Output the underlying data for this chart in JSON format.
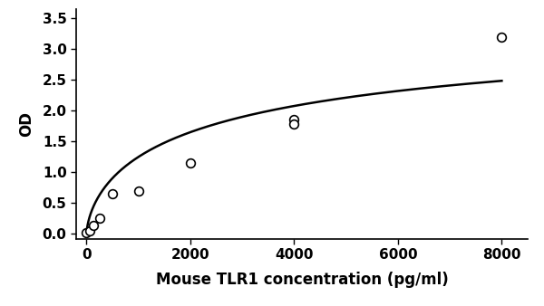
{
  "data_points_x": [
    0,
    62.5,
    125,
    250,
    500,
    1000,
    2000,
    4000,
    4000,
    8000
  ],
  "data_points_y": [
    0.02,
    0.05,
    0.13,
    0.25,
    0.65,
    0.7,
    1.15,
    1.85,
    1.78,
    3.2
  ],
  "xlabel": "Mouse TLR1 concentration (pg/ml)",
  "ylabel": "OD",
  "xlim": [
    -200,
    8500
  ],
  "ylim": [
    -0.08,
    3.65
  ],
  "xticks": [
    0,
    2000,
    4000,
    6000,
    8000
  ],
  "yticks": [
    0,
    0.5,
    1,
    1.5,
    2,
    2.5,
    3,
    3.5
  ],
  "line_color": "#000000",
  "marker_facecolor": "white",
  "marker_edgecolor": "#000000",
  "marker_size": 7,
  "marker_linewidth": 1.2,
  "line_width": 1.8,
  "xlabel_fontsize": 12,
  "ylabel_fontsize": 12,
  "tick_fontsize": 11,
  "xlabel_fontweight": "bold",
  "ylabel_fontweight": "bold",
  "tick_fontweight": "bold"
}
